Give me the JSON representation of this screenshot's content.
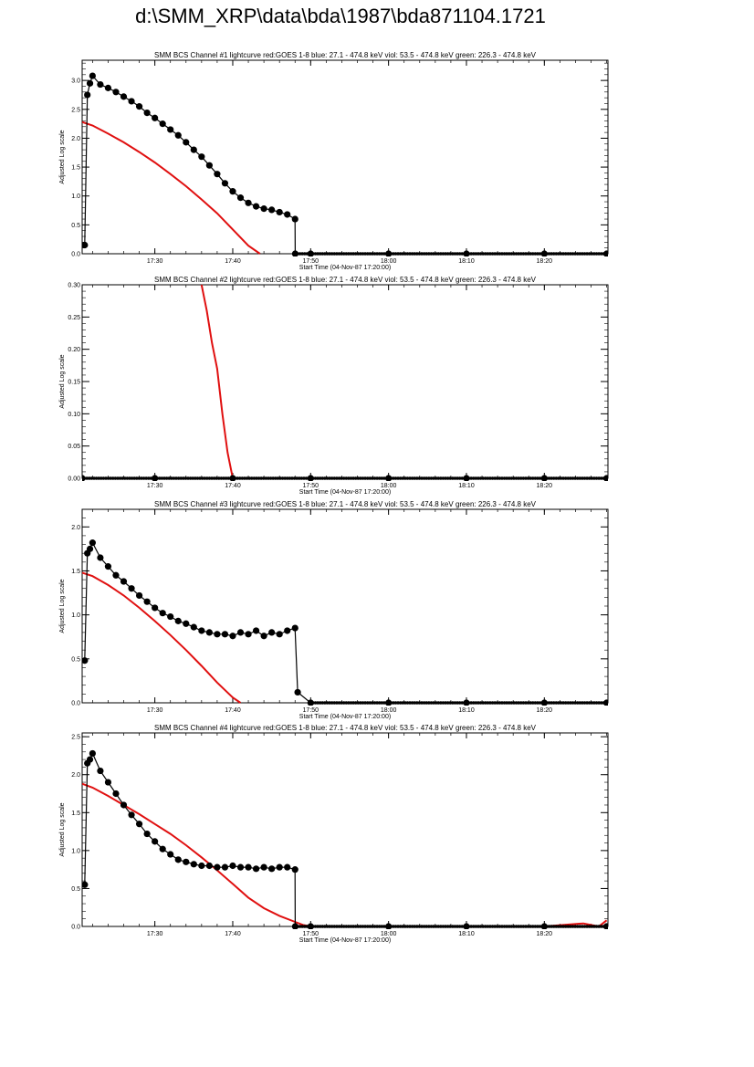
{
  "page": {
    "title": "d:\\SMM_XRP\\data\\bda\\1987\\bda871104.1721"
  },
  "colors": {
    "bcs": "#000000",
    "goes": "#e01010",
    "frame": "#000000"
  },
  "chart_data": [
    {
      "type": "line",
      "title": "SMM BCS Channel #1 lightcurve  red:GOES 1-8  blue: 27.1 - 474.8 keV  viol: 53.5 - 474.8 keV  green: 226.3 - 474.8 keV",
      "xlabel": "Start Time (04-Nov-87 17:20:00)",
      "ylabel": "Adjusted Log scale",
      "xlim": [
        "17:20:40",
        "18:28:10"
      ],
      "ylim": [
        0,
        3.35
      ],
      "xticks": [
        "17:30",
        "17:40",
        "17:50",
        "18:00",
        "18:10",
        "18:20"
      ],
      "yticks": [
        "0.0",
        "0.5",
        "1.0",
        "1.5",
        "2.0",
        "2.5",
        "3.0"
      ],
      "grid": false,
      "series": [
        {
          "color": "black",
          "marker": "circle",
          "x": [
            "17:21:00",
            "17:21:20",
            "17:21:40",
            "17:22:00",
            "17:23:00",
            "17:24:00",
            "17:25:00",
            "17:26:00",
            "17:27:00",
            "17:28:00",
            "17:29:00",
            "17:30:00",
            "17:31:00",
            "17:32:00",
            "17:33:00",
            "17:34:00",
            "17:35:00",
            "17:36:00",
            "17:37:00",
            "17:38:00",
            "17:39:00",
            "17:40:00",
            "17:41:00",
            "17:42:00",
            "17:43:00",
            "17:44:00",
            "17:45:00",
            "17:46:00",
            "17:47:00",
            "17:48:00",
            "17:48:01",
            "17:50:00",
            "18:00:00",
            "18:10:00",
            "18:20:00",
            "18:28:00"
          ],
          "values": [
            0.15,
            2.75,
            2.95,
            3.08,
            2.93,
            2.87,
            2.8,
            2.72,
            2.64,
            2.55,
            2.44,
            2.35,
            2.25,
            2.15,
            2.05,
            1.93,
            1.8,
            1.68,
            1.53,
            1.38,
            1.22,
            1.08,
            0.97,
            0.88,
            0.82,
            0.78,
            0.76,
            0.72,
            0.68,
            0.6,
            0.0,
            0.0,
            0.0,
            0.0,
            0.0,
            0.0
          ]
        },
        {
          "color": "red",
          "marker": "none",
          "x": [
            "17:20:40",
            "17:22:00",
            "17:24:00",
            "17:26:00",
            "17:28:00",
            "17:30:00",
            "17:32:00",
            "17:34:00",
            "17:36:00",
            "17:38:00",
            "17:40:00",
            "17:42:00",
            "17:43:30"
          ],
          "values": [
            2.28,
            2.22,
            2.08,
            1.93,
            1.76,
            1.58,
            1.38,
            1.17,
            0.94,
            0.7,
            0.42,
            0.14,
            0.0
          ]
        }
      ]
    },
    {
      "type": "line",
      "title": "SMM BCS Channel #2 lightcurve  red:GOES 1-8  blue: 27.1 - 474.8 keV  viol: 53.5 - 474.8 keV  green: 226.3 - 474.8 keV",
      "xlabel": "Start Time (04-Nov-87 17:20:00)",
      "ylabel": "Adjusted Log scale",
      "xlim": [
        "17:20:40",
        "18:28:10"
      ],
      "ylim": [
        0,
        0.3
      ],
      "xticks": [
        "17:30",
        "17:40",
        "17:50",
        "18:00",
        "18:10",
        "18:20"
      ],
      "yticks": [
        "0.00",
        "0.05",
        "0.10",
        "0.15",
        "0.20",
        "0.25",
        "0.30"
      ],
      "grid": false,
      "series": [
        {
          "color": "black",
          "marker": "circle",
          "x": [
            "17:20:40",
            "17:30:00",
            "17:40:00",
            "17:50:00",
            "18:00:00",
            "18:10:00",
            "18:20:00",
            "18:28:00"
          ],
          "values": [
            0.0,
            0.0,
            0.0,
            0.0,
            0.0,
            0.0,
            0.0,
            0.0
          ]
        },
        {
          "color": "red",
          "marker": "none",
          "x": [
            "17:36:00",
            "17:36:40",
            "17:37:20",
            "17:38:00",
            "17:38:40",
            "17:39:20",
            "17:40:00"
          ],
          "values": [
            0.3,
            0.26,
            0.21,
            0.17,
            0.1,
            0.04,
            0.0
          ]
        }
      ]
    },
    {
      "type": "line",
      "title": "SMM BCS Channel #3 lightcurve  red:GOES 1-8  blue: 27.1 - 474.8 keV  viol: 53.5 - 474.8 keV  green: 226.3 - 474.8 keV",
      "xlabel": "Start Time (04-Nov-87 17:20:00)",
      "ylabel": "Adjusted Log scale",
      "xlim": [
        "17:20:40",
        "18:28:10"
      ],
      "ylim": [
        0,
        2.2
      ],
      "xticks": [
        "17:30",
        "17:40",
        "17:50",
        "18:00",
        "18:10",
        "18:20"
      ],
      "yticks": [
        "0.0",
        "0.5",
        "1.0",
        "1.5",
        "2.0"
      ],
      "grid": false,
      "series": [
        {
          "color": "black",
          "marker": "circle",
          "x": [
            "17:21:00",
            "17:21:20",
            "17:21:40",
            "17:22:00",
            "17:23:00",
            "17:24:00",
            "17:25:00",
            "17:26:00",
            "17:27:00",
            "17:28:00",
            "17:29:00",
            "17:30:00",
            "17:31:00",
            "17:32:00",
            "17:33:00",
            "17:34:00",
            "17:35:00",
            "17:36:00",
            "17:37:00",
            "17:38:00",
            "17:39:00",
            "17:40:00",
            "17:41:00",
            "17:42:00",
            "17:43:00",
            "17:44:00",
            "17:45:00",
            "17:46:00",
            "17:47:00",
            "17:48:00",
            "17:48:20",
            "17:50:00",
            "18:00:00",
            "18:10:00",
            "18:20:00",
            "18:28:00"
          ],
          "values": [
            0.48,
            1.7,
            1.75,
            1.82,
            1.65,
            1.55,
            1.45,
            1.38,
            1.3,
            1.22,
            1.15,
            1.08,
            1.02,
            0.98,
            0.93,
            0.9,
            0.86,
            0.82,
            0.8,
            0.78,
            0.78,
            0.76,
            0.8,
            0.78,
            0.82,
            0.76,
            0.8,
            0.78,
            0.82,
            0.85,
            0.12,
            0.0,
            0.0,
            0.0,
            0.0,
            0.0
          ]
        },
        {
          "color": "red",
          "marker": "none",
          "x": [
            "17:20:40",
            "17:22:00",
            "17:24:00",
            "17:26:00",
            "17:28:00",
            "17:30:00",
            "17:32:00",
            "17:34:00",
            "17:36:00",
            "17:38:00",
            "17:40:00",
            "17:41:00"
          ],
          "values": [
            1.48,
            1.44,
            1.34,
            1.22,
            1.08,
            0.93,
            0.77,
            0.6,
            0.42,
            0.23,
            0.06,
            0.0
          ]
        }
      ]
    },
    {
      "type": "line",
      "title": "SMM BCS Channel #4 lightcurve  red:GOES 1-8  blue: 27.1 - 474.8 keV  viol: 53.5 - 474.8 keV  green: 226.3 - 474.8 keV",
      "xlabel": "Start Time (04-Nov-87 17:20:00)",
      "ylabel": "Adjusted Log scale",
      "xlim": [
        "17:20:40",
        "18:28:10"
      ],
      "ylim": [
        0,
        2.55
      ],
      "xticks": [
        "17:30",
        "17:40",
        "17:50",
        "18:00",
        "18:10",
        "18:20"
      ],
      "yticks": [
        "0.0",
        "0.5",
        "1.0",
        "1.5",
        "2.0",
        "2.5"
      ],
      "grid": false,
      "series": [
        {
          "color": "black",
          "marker": "circle",
          "x": [
            "17:21:00",
            "17:21:20",
            "17:21:40",
            "17:22:00",
            "17:23:00",
            "17:24:00",
            "17:25:00",
            "17:26:00",
            "17:27:00",
            "17:28:00",
            "17:29:00",
            "17:30:00",
            "17:31:00",
            "17:32:00",
            "17:33:00",
            "17:34:00",
            "17:35:00",
            "17:36:00",
            "17:37:00",
            "17:38:00",
            "17:39:00",
            "17:40:00",
            "17:41:00",
            "17:42:00",
            "17:43:00",
            "17:44:00",
            "17:45:00",
            "17:46:00",
            "17:47:00",
            "17:48:00",
            "17:48:01",
            "17:50:00",
            "18:00:00",
            "18:10:00",
            "18:20:00",
            "18:28:00"
          ],
          "values": [
            0.55,
            2.15,
            2.2,
            2.28,
            2.05,
            1.9,
            1.75,
            1.6,
            1.47,
            1.35,
            1.22,
            1.12,
            1.02,
            0.95,
            0.88,
            0.85,
            0.82,
            0.8,
            0.8,
            0.78,
            0.78,
            0.8,
            0.78,
            0.78,
            0.76,
            0.78,
            0.76,
            0.78,
            0.78,
            0.75,
            0.0,
            0.0,
            0.0,
            0.0,
            0.0,
            0.0
          ]
        },
        {
          "color": "red",
          "marker": "none",
          "x": [
            "17:20:40",
            "17:22:00",
            "17:24:00",
            "17:26:00",
            "17:28:00",
            "17:30:00",
            "17:32:00",
            "17:34:00",
            "17:36:00",
            "17:38:00",
            "17:40:00",
            "17:42:00",
            "17:44:00",
            "17:46:00",
            "17:48:00",
            "17:49:00",
            "17:50:00",
            "18:20:00",
            "18:25:00",
            "18:27:00",
            "18:28:00"
          ],
          "values": [
            1.88,
            1.83,
            1.72,
            1.6,
            1.48,
            1.35,
            1.22,
            1.07,
            0.91,
            0.74,
            0.56,
            0.38,
            0.24,
            0.14,
            0.06,
            0.02,
            0.0,
            0.0,
            0.04,
            0.0,
            0.08
          ]
        }
      ]
    }
  ]
}
